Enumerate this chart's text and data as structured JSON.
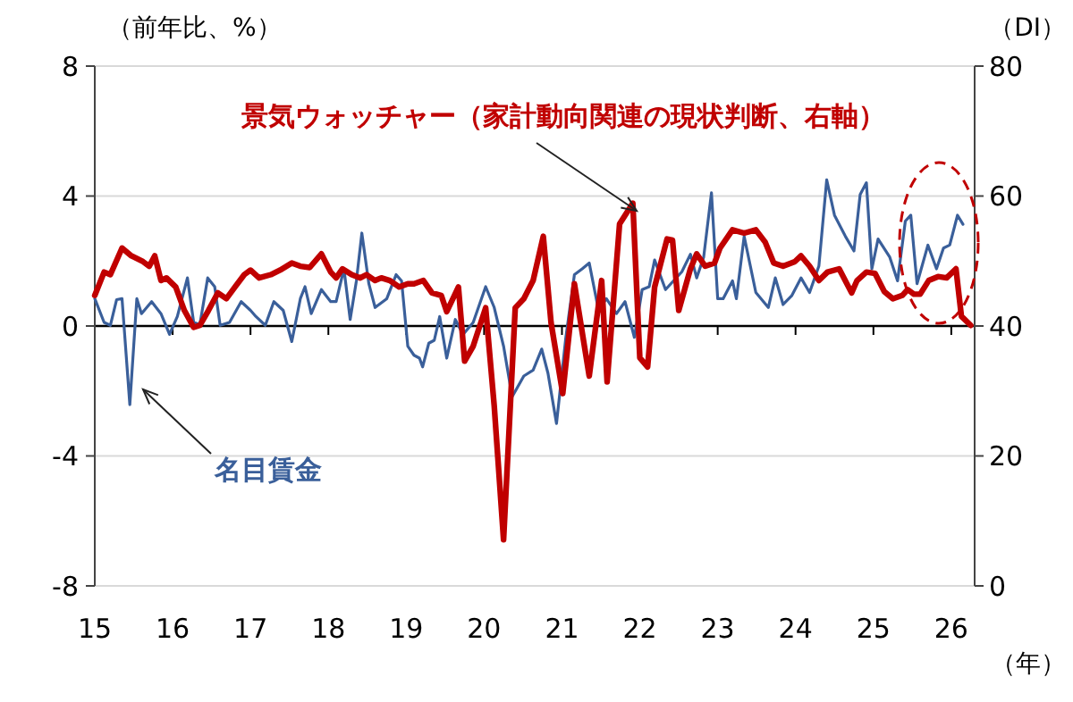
{
  "chart_data": {
    "type": "line",
    "ylabel": "（前年比、%）",
    "y2label": "（DI）",
    "xlabel": "（年）",
    "xlim": [
      15,
      26.3
    ],
    "xticks": [
      15,
      16,
      17,
      18,
      19,
      20,
      21,
      22,
      23,
      24,
      25,
      26
    ],
    "ylim": [
      -8,
      8
    ],
    "yticks": [
      -8,
      -4,
      0,
      4,
      8
    ],
    "y2lim": [
      0,
      80
    ],
    "y2ticks": [
      0,
      20,
      40,
      60,
      80
    ],
    "grid": "y",
    "series": [
      {
        "name": "名目賃金",
        "color": "#3a5f9a",
        "x": [
          15.0,
          15.12,
          15.2,
          15.28,
          15.35,
          15.45,
          15.54,
          15.6,
          15.73,
          15.85,
          15.96,
          16.06,
          16.19,
          16.27,
          16.35,
          16.45,
          16.54,
          16.61,
          16.73,
          16.88,
          17.0,
          17.07,
          17.19,
          17.3,
          17.42,
          17.53,
          17.64,
          17.7,
          17.78,
          17.91,
          18.03,
          18.1,
          18.2,
          18.28,
          18.36,
          18.43,
          18.52,
          18.6,
          18.75,
          18.87,
          18.94,
          19.02,
          19.1,
          19.17,
          19.21,
          19.29,
          19.36,
          19.43,
          19.52,
          19.63,
          19.73,
          19.86,
          20.02,
          20.13,
          20.25,
          20.36,
          20.51,
          20.63,
          20.74,
          20.82,
          20.93,
          21.05,
          21.16,
          21.26,
          21.35,
          21.47,
          21.57,
          21.7,
          21.81,
          21.93,
          22.03,
          22.12,
          22.19,
          22.33,
          22.54,
          22.65,
          22.73,
          22.82,
          22.92,
          23.0,
          23.07,
          23.19,
          23.24,
          23.34,
          23.49,
          23.65,
          23.74,
          23.84,
          23.95,
          24.07,
          24.18,
          24.3,
          24.4,
          24.5,
          24.64,
          24.75,
          24.83,
          24.91,
          24.98,
          25.06,
          25.21,
          25.31,
          25.41,
          25.48,
          25.56,
          25.7,
          25.81,
          25.9,
          25.98,
          26.08,
          26.15
        ],
        "values": [
          0.84,
          0.11,
          0.02,
          0.81,
          0.84,
          -2.42,
          0.84,
          0.38,
          0.75,
          0.38,
          -0.26,
          0.29,
          1.48,
          0.11,
          0.05,
          1.48,
          1.21,
          0.02,
          0.11,
          0.75,
          0.48,
          0.29,
          0.02,
          0.75,
          0.48,
          -0.48,
          0.84,
          1.21,
          0.38,
          1.12,
          0.75,
          0.75,
          1.76,
          0.2,
          1.39,
          2.86,
          1.3,
          0.57,
          0.84,
          1.58,
          1.39,
          -0.62,
          -0.9,
          -0.99,
          -1.26,
          -0.53,
          -0.44,
          0.29,
          -0.99,
          0.2,
          -0.26,
          0.11,
          1.21,
          0.57,
          -0.62,
          -2.18,
          -1.54,
          -1.36,
          -0.71,
          -1.45,
          -3.0,
          -0.35,
          1.58,
          1.76,
          1.94,
          0.48,
          0.84,
          0.38,
          0.75,
          -0.35,
          1.12,
          1.21,
          2.03,
          1.12,
          1.67,
          2.21,
          1.48,
          2.12,
          4.1,
          0.84,
          0.84,
          1.39,
          0.84,
          2.76,
          1.03,
          0.57,
          1.48,
          0.66,
          0.93,
          1.48,
          1.03,
          1.85,
          4.5,
          3.41,
          2.76,
          2.31,
          4.05,
          4.41,
          1.76,
          2.68,
          2.12,
          1.39,
          3.23,
          3.41,
          1.3,
          2.49,
          1.76,
          2.4,
          2.49,
          3.41,
          3.13
        ]
      },
      {
        "name": "景気ウォッチャー（家計動向関連の現状判断、右軸）",
        "color": "#c00000",
        "axis": "y2",
        "x": [
          15.0,
          15.12,
          15.2,
          15.35,
          15.47,
          15.62,
          15.7,
          15.77,
          15.85,
          15.92,
          16.04,
          16.15,
          16.27,
          16.35,
          16.46,
          16.58,
          16.69,
          16.8,
          16.92,
          17.0,
          17.11,
          17.26,
          17.38,
          17.53,
          17.64,
          17.76,
          17.91,
          18.03,
          18.1,
          18.18,
          18.3,
          18.41,
          18.49,
          18.6,
          18.68,
          18.79,
          18.91,
          19.02,
          19.1,
          19.22,
          19.33,
          19.45,
          19.52,
          19.67,
          19.75,
          19.86,
          20.02,
          20.13,
          20.25,
          20.4,
          20.51,
          20.63,
          20.76,
          20.86,
          21.01,
          21.16,
          21.35,
          21.51,
          21.58,
          21.74,
          21.91,
          22.0,
          22.1,
          22.19,
          22.35,
          22.42,
          22.5,
          22.65,
          22.73,
          22.84,
          22.96,
          23.03,
          23.19,
          23.34,
          23.49,
          23.61,
          23.72,
          23.84,
          23.99,
          24.07,
          24.18,
          24.3,
          24.41,
          24.56,
          24.72,
          24.79,
          24.91,
          25.02,
          25.14,
          25.25,
          25.37,
          25.44,
          25.52,
          25.6,
          25.71,
          25.83,
          25.94,
          26.06,
          26.13,
          26.25
        ],
        "values": [
          44.7,
          48.3,
          47.9,
          52.0,
          50.8,
          49.9,
          49.2,
          50.8,
          47.0,
          47.4,
          46.0,
          42.4,
          39.8,
          40.1,
          42.4,
          45.1,
          44.2,
          46.0,
          47.9,
          48.6,
          47.4,
          47.9,
          48.6,
          49.7,
          49.2,
          49.0,
          51.1,
          48.3,
          47.4,
          48.8,
          47.9,
          47.4,
          47.9,
          47.0,
          47.4,
          47.0,
          46.0,
          46.5,
          46.5,
          47.0,
          45.1,
          44.7,
          42.2,
          46.0,
          34.6,
          36.9,
          42.8,
          27.7,
          7.1,
          42.8,
          44.2,
          47.0,
          53.8,
          40.5,
          29.6,
          46.5,
          32.3,
          47.0,
          31.4,
          55.7,
          58.9,
          35.1,
          33.7,
          46.0,
          53.4,
          53.2,
          42.4,
          48.8,
          51.1,
          49.2,
          49.7,
          52.0,
          54.8,
          54.3,
          54.8,
          52.9,
          49.7,
          49.2,
          49.9,
          50.8,
          49.2,
          47.0,
          48.3,
          48.8,
          45.1,
          47.0,
          48.3,
          48.1,
          45.3,
          44.2,
          44.7,
          45.6,
          44.9,
          44.9,
          47.0,
          47.6,
          47.4,
          48.8,
          41.5,
          40.1
        ]
      }
    ]
  }
}
